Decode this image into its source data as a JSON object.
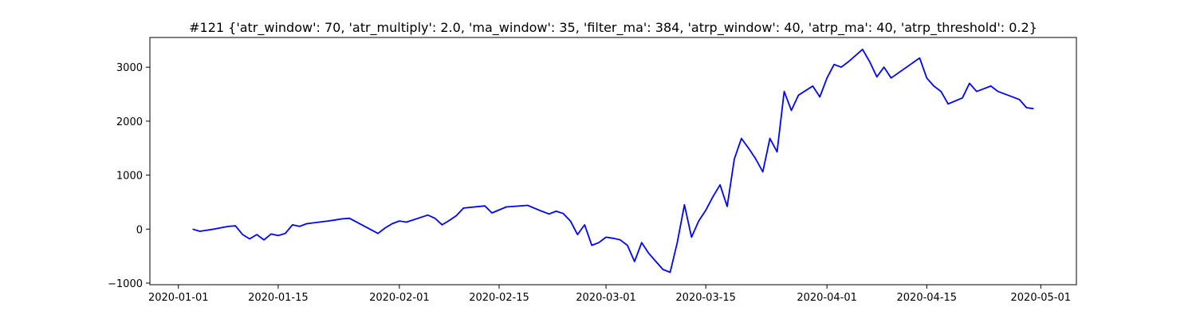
{
  "chart_data": {
    "type": "line",
    "title": "#121 {'atr_window': 70, 'atr_multiply': 2.0, 'ma_window': 35, 'filter_ma': 384, 'atrp_window': 40, 'atrp_ma': 40, 'atrp_threshold': 0.2}",
    "color": "#0000ff",
    "x": [
      "2020-01-03",
      "2020-01-04",
      "2020-01-06",
      "2020-01-08",
      "2020-01-09",
      "2020-01-10",
      "2020-01-11",
      "2020-01-12",
      "2020-01-13",
      "2020-01-14",
      "2020-01-15",
      "2020-01-16",
      "2020-01-17",
      "2020-01-18",
      "2020-01-19",
      "2020-01-22",
      "2020-01-23",
      "2020-01-24",
      "2020-01-25",
      "2020-01-29",
      "2020-01-30",
      "2020-01-31",
      "2020-02-01",
      "2020-02-02",
      "2020-02-05",
      "2020-02-06",
      "2020-02-07",
      "2020-02-08",
      "2020-02-09",
      "2020-02-10",
      "2020-02-13",
      "2020-02-14",
      "2020-02-16",
      "2020-02-19",
      "2020-02-21",
      "2020-02-22",
      "2020-02-23",
      "2020-02-24",
      "2020-02-25",
      "2020-02-26",
      "2020-02-27",
      "2020-02-28",
      "2020-02-29",
      "2020-03-01",
      "2020-03-02",
      "2020-03-03",
      "2020-03-04",
      "2020-03-05",
      "2020-03-06",
      "2020-03-07",
      "2020-03-08",
      "2020-03-09",
      "2020-03-10",
      "2020-03-11",
      "2020-03-12",
      "2020-03-13",
      "2020-03-14",
      "2020-03-15",
      "2020-03-16",
      "2020-03-17",
      "2020-03-18",
      "2020-03-19",
      "2020-03-20",
      "2020-03-21",
      "2020-03-22",
      "2020-03-23",
      "2020-03-24",
      "2020-03-25",
      "2020-03-26",
      "2020-03-27",
      "2020-03-28",
      "2020-03-30",
      "2020-03-31",
      "2020-04-01",
      "2020-04-02",
      "2020-04-03",
      "2020-04-04",
      "2020-04-06",
      "2020-04-07",
      "2020-04-08",
      "2020-04-09",
      "2020-04-10",
      "2020-04-14",
      "2020-04-15",
      "2020-04-16",
      "2020-04-17",
      "2020-04-18",
      "2020-04-20",
      "2020-04-21",
      "2020-04-22",
      "2020-04-23",
      "2020-04-24",
      "2020-04-25",
      "2020-04-28",
      "2020-04-29",
      "2020-04-30"
    ],
    "values": [
      0,
      -40,
      0,
      50,
      60,
      -100,
      -180,
      -100,
      -200,
      -90,
      -120,
      -80,
      80,
      50,
      100,
      150,
      170,
      190,
      200,
      -80,
      20,
      100,
      150,
      130,
      260,
      200,
      80,
      160,
      250,
      390,
      430,
      300,
      410,
      440,
      330,
      280,
      330,
      290,
      150,
      -100,
      80,
      -300,
      -250,
      -150,
      -170,
      -200,
      -300,
      -600,
      -250,
      -450,
      -600,
      -750,
      -800,
      -250,
      450,
      -150,
      150,
      350,
      600,
      820,
      420,
      1300,
      1680,
      1500,
      1300,
      1060,
      1680,
      1430,
      2550,
      2200,
      2480,
      2650,
      2450,
      2800,
      3050,
      3000,
      3100,
      3330,
      3100,
      2820,
      3000,
      2800,
      3170,
      2800,
      2650,
      2550,
      2320,
      2430,
      2700,
      2550,
      2600,
      2650,
      2550,
      2400,
      2250,
      2230
    ],
    "xlim": [
      "2019-12-28",
      "2020-05-06"
    ],
    "xticks": [
      "2020-01-01",
      "2020-01-15",
      "2020-02-01",
      "2020-02-15",
      "2020-03-01",
      "2020-03-15",
      "2020-04-01",
      "2020-04-15",
      "2020-05-01"
    ],
    "ylim": [
      -1030,
      3550
    ],
    "yticks": [
      {
        "value": -1000,
        "label": "−1000"
      },
      0,
      1000,
      2000,
      3000
    ]
  }
}
